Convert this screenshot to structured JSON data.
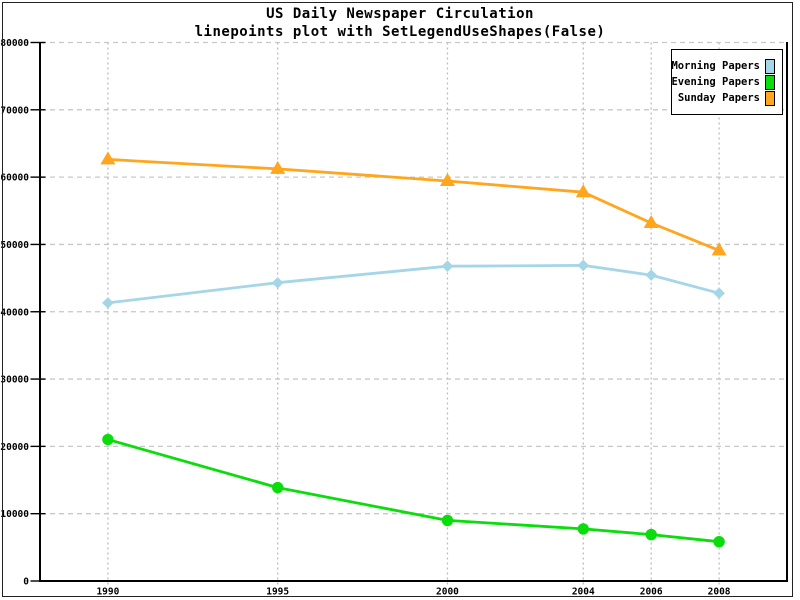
{
  "title": {
    "line1": "US Daily Newspaper Circulation",
    "line2": "linepoints plot with SetLegendUseShapes(False)"
  },
  "legend": {
    "position": "top-right",
    "items": [
      {
        "label": "Morning Papers",
        "color": "#a4d6e8"
      },
      {
        "label": "Evening Papers",
        "color": "#0bdc0b"
      },
      {
        "label": "Sunday Papers",
        "color": "#ffa51e"
      }
    ]
  },
  "chart_data": {
    "type": "line",
    "title": "US Daily Newspaper Circulation",
    "subtitle": "linepoints plot with SetLegendUseShapes(False)",
    "xlabel": "",
    "ylabel": "",
    "x": [
      1990,
      1995,
      2000,
      2004,
      2006,
      2008
    ],
    "series": [
      {
        "name": "Morning Papers",
        "color": "#a4d6e8",
        "marker": "diamond",
        "values": [
          41311,
          44310,
          46772,
          46887,
          45441,
          42757
        ]
      },
      {
        "name": "Evening Papers",
        "color": "#0bdc0b",
        "marker": "circle",
        "values": [
          21017,
          13883,
          9000,
          7738,
          6900,
          5840
        ]
      },
      {
        "name": "Sunday Papers",
        "color": "#ffa51e",
        "marker": "triangle-up",
        "values": [
          62634,
          61229,
          59421,
          57754,
          53179,
          49115
        ]
      }
    ],
    "xlim": [
      1988,
      2010
    ],
    "ylim": [
      0,
      80000
    ],
    "xticks": [
      1990,
      1995,
      2000,
      2004,
      2006,
      2008
    ],
    "yticks": [
      0,
      10000,
      20000,
      30000,
      40000,
      50000,
      60000,
      70000,
      80000
    ],
    "grid": true,
    "grid_color": "#c8c8c8",
    "axis_color": "#000000",
    "legend_position": "top-right"
  }
}
